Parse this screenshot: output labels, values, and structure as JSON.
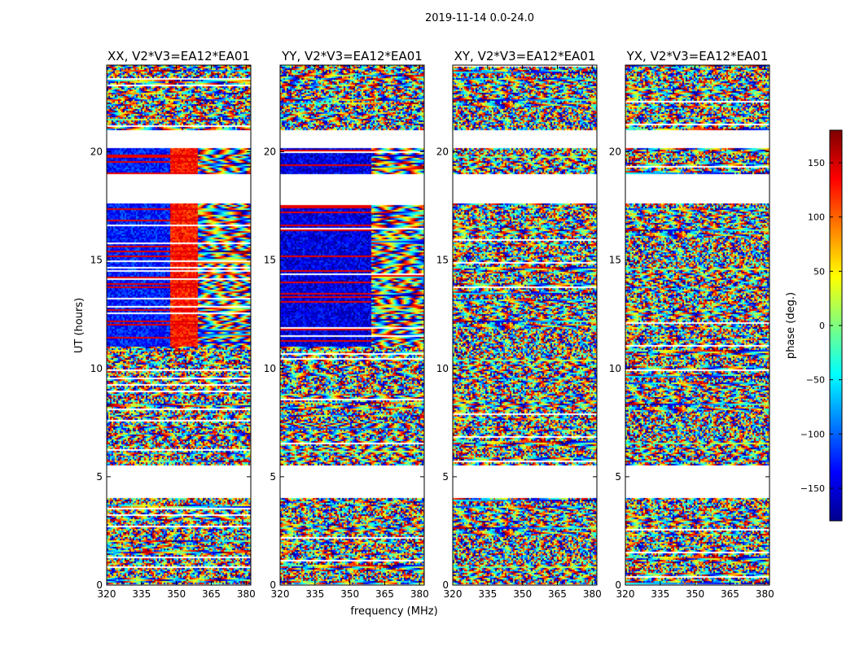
{
  "chart_data": {
    "type": "heatmap",
    "suptitle": "2019-11-14 0.0-24.0",
    "xlabel": "frequency (MHz)",
    "ylabel": "UT (hours)",
    "xlim": [
      320,
      382
    ],
    "ylim": [
      0,
      24
    ],
    "xticks": [
      320,
      335,
      350,
      365,
      380
    ],
    "yticks": [
      0,
      5,
      10,
      15,
      20
    ],
    "panels": [
      {
        "title": "XX, V2*V3=EA12*EA01",
        "pol": "XX"
      },
      {
        "title": "YY, V2*V3=EA12*EA01",
        "pol": "YY"
      },
      {
        "title": "XY, V2*V3=EA12*EA01",
        "pol": "XY"
      },
      {
        "title": "YX, V2*V3=EA12*EA01",
        "pol": "YX"
      }
    ],
    "data_gaps_hours": [
      [
        0.0,
        0.07
      ],
      [
        4.0,
        5.5
      ],
      [
        17.6,
        19.0
      ],
      [
        20.2,
        21.0
      ]
    ],
    "colorbar": {
      "label": "phase (deg.)",
      "range": [
        -180,
        180
      ],
      "ticks": [
        -150,
        -100,
        -50,
        0,
        50,
        100,
        150
      ],
      "tick_labels": [
        "−150",
        "−100",
        "−50",
        "0",
        "50",
        "100",
        "150"
      ],
      "colormap": "jet"
    }
  }
}
